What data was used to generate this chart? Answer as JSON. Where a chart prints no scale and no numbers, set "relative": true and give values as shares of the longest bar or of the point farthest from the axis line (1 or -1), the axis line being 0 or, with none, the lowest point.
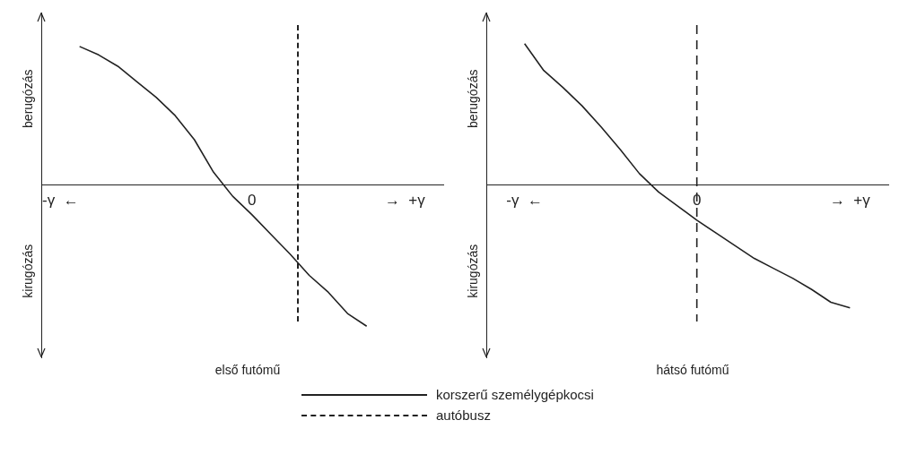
{
  "chart_data": [
    {
      "type": "line",
      "relative": true,
      "xlabel": "első futómű",
      "annotations": [
        "berugózás",
        "kirugózás"
      ],
      "categories": [
        null,
        "-γ  ←",
        null,
        null,
        null,
        null,
        null,
        null,
        null,
        null,
        null,
        "0",
        null,
        null,
        null,
        null,
        null,
        null,
        null,
        "→  +γ",
        null,
        null
      ],
      "marker": "none",
      "legend": "bottom",
      "grid": false,
      "series": [
        {
          "name": "korszerű személygépkocsi",
          "color": "#222222",
          "line_style": "solid",
          "values": [
            null,
            null,
            0.98,
            0.92,
            0.84,
            0.73,
            0.62,
            0.49,
            0.32,
            0.09,
            -0.08,
            -0.21,
            -0.35,
            -0.49,
            -0.64,
            -0.76,
            -0.91,
            -1,
            null,
            null,
            null,
            null
          ]
        }
      ]
    },
    {
      "type": "line",
      "relative": true,
      "xlabel": "hátsó futómű",
      "annotations": [
        "berugózás",
        "kirugózás"
      ],
      "categories": [
        null,
        null,
        "-γ  ←",
        null,
        null,
        null,
        null,
        null,
        null,
        null,
        null,
        "0",
        null,
        null,
        null,
        null,
        null,
        null,
        null,
        "→  +γ",
        null,
        null
      ],
      "marker": "none",
      "legend": "bottom",
      "grid": false,
      "series": [
        {
          "color": "#222222",
          "line_style": "solid",
          "values": [
            null,
            null,
            1,
            0.81,
            0.69,
            0.56,
            0.41,
            0.25,
            0.08,
            -0.05,
            -0.15,
            -0.25,
            -0.34,
            -0.43,
            -0.52,
            -0.59,
            -0.66,
            -0.74,
            -0.83,
            -0.87,
            null,
            null
          ]
        }
      ],
      "ref_lines": [
        {
          "axis": "x",
          "value": "0",
          "label": "autóbusz",
          "color": "#222222",
          "line_style": "dashed"
        }
      ]
    }
  ]
}
